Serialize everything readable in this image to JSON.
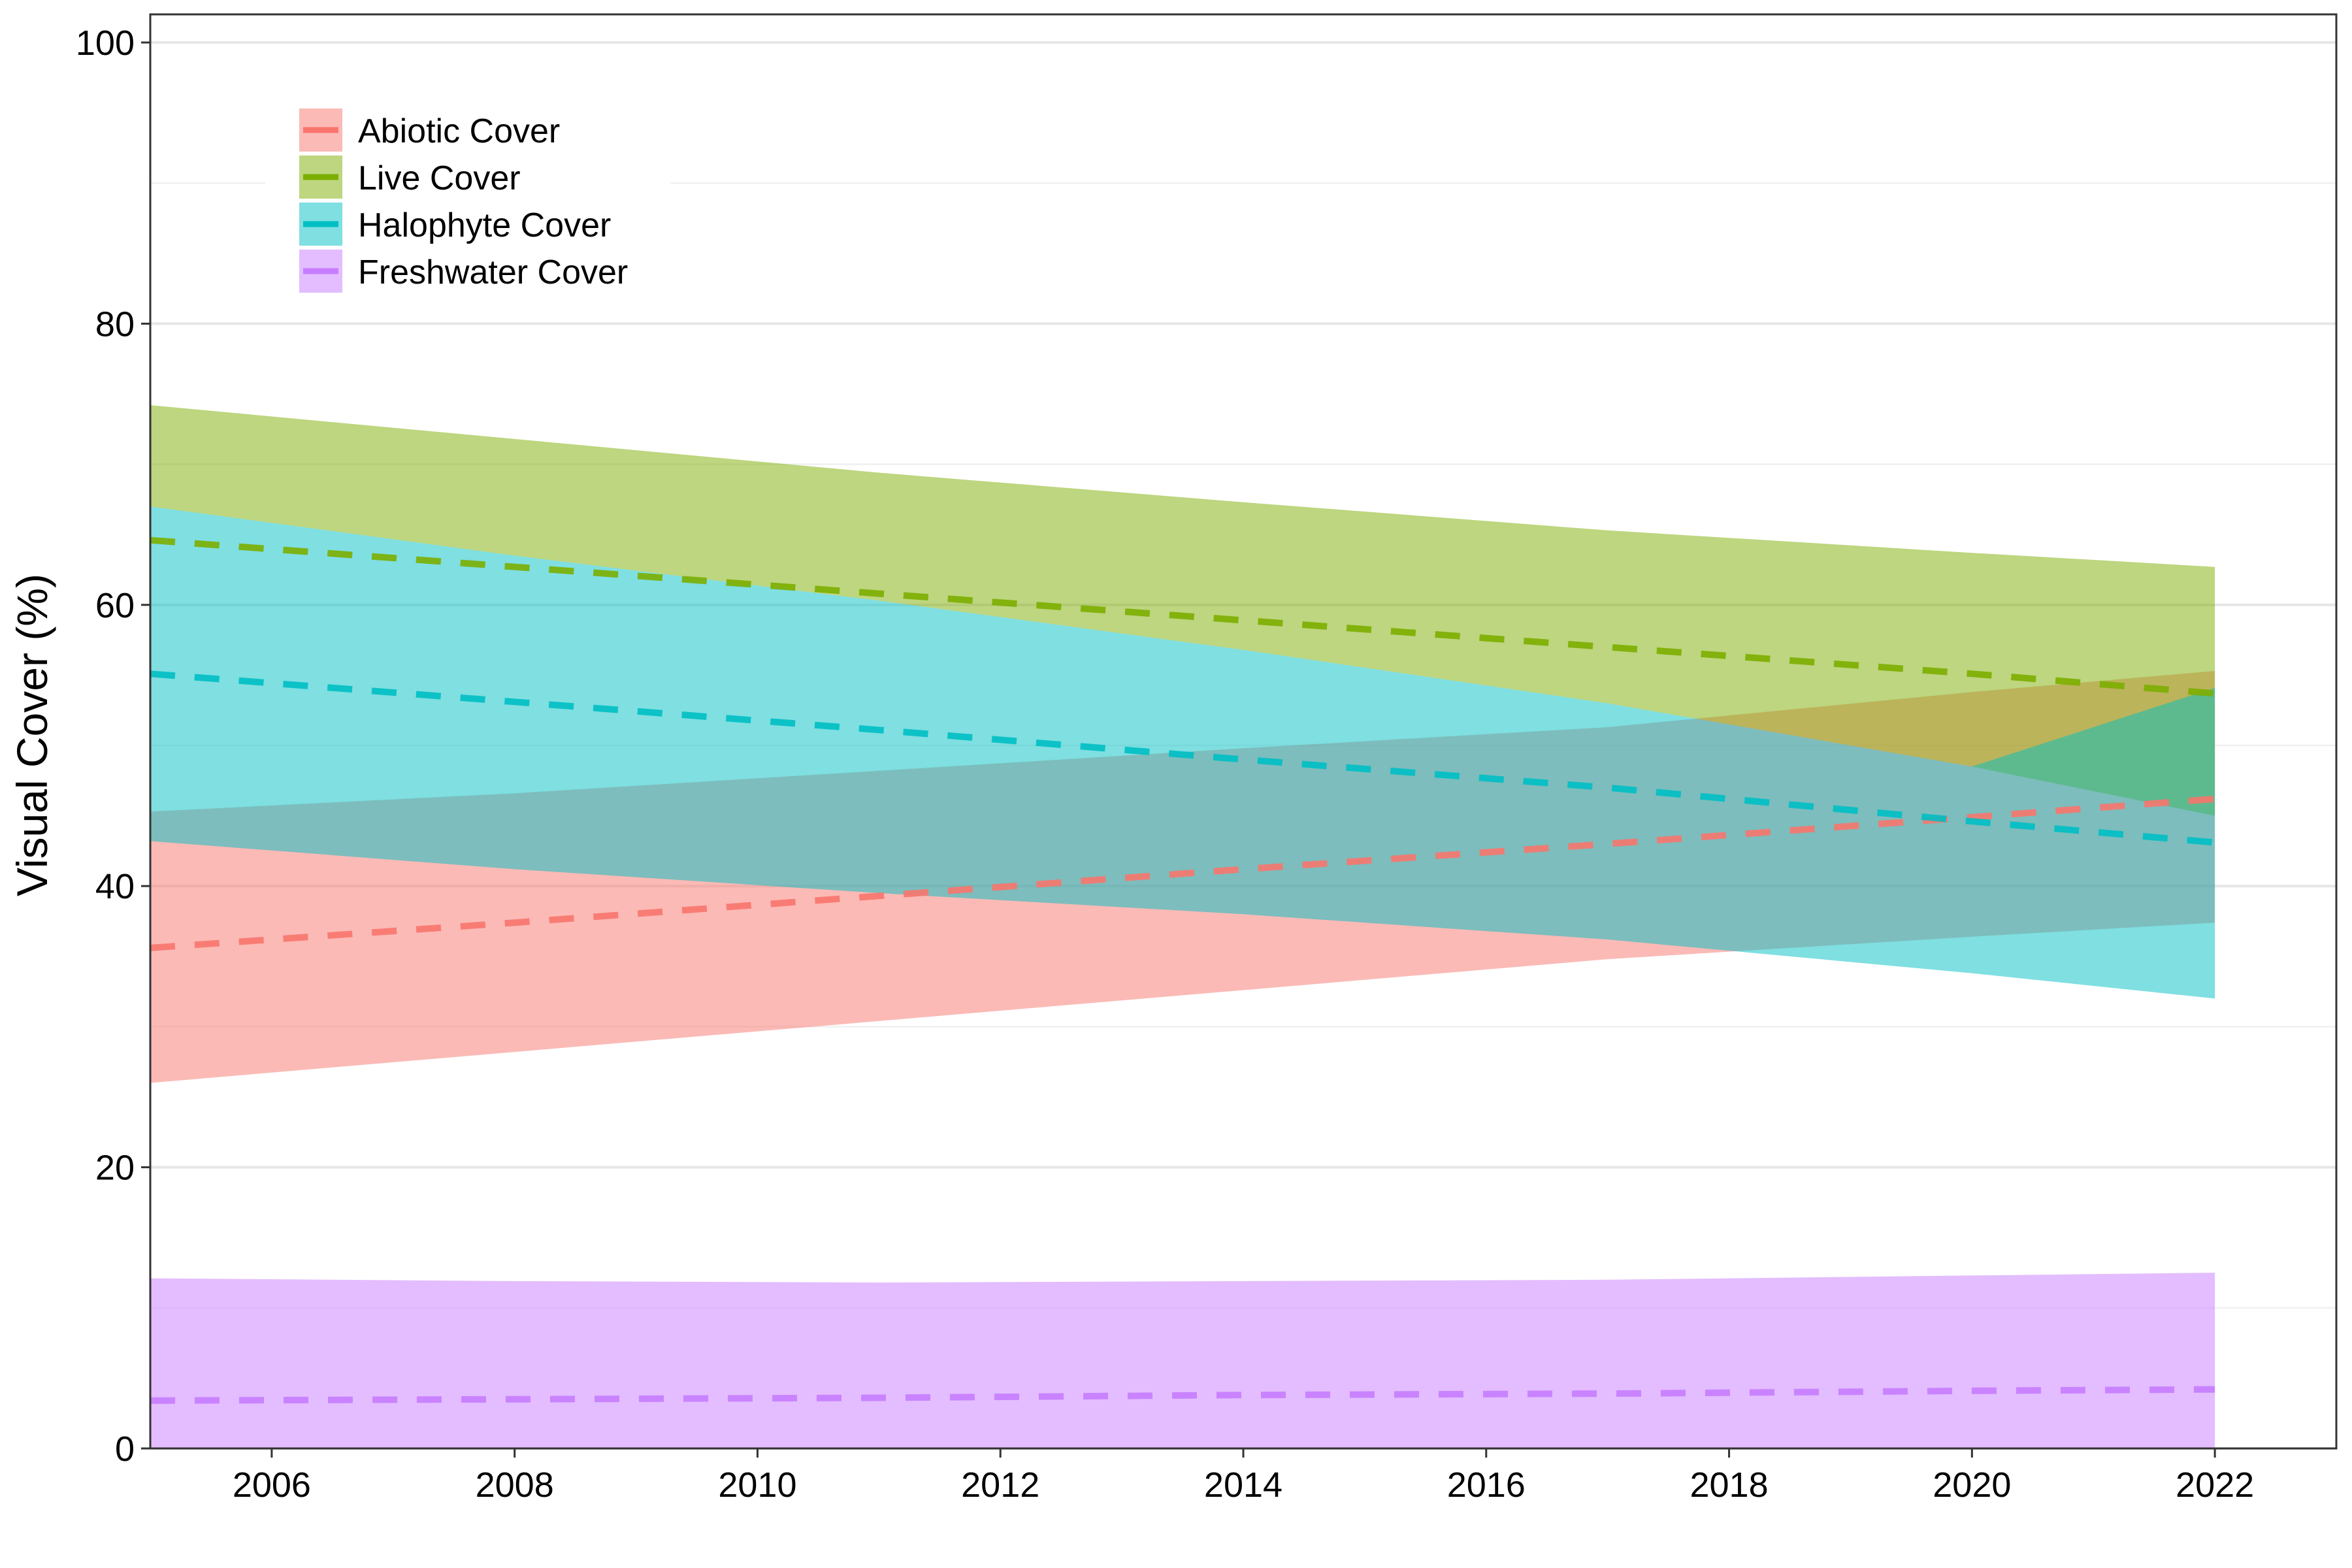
{
  "chart_data": {
    "type": "area",
    "title": "",
    "xlabel": "",
    "ylabel": "Visual Cover (%)",
    "xlim": [
      2005,
      2023
    ],
    "ylim": [
      0,
      102
    ],
    "x_ticks": [
      2006,
      2008,
      2010,
      2012,
      2014,
      2016,
      2018,
      2020,
      2022
    ],
    "y_ticks": [
      0,
      20,
      40,
      60,
      80,
      100
    ],
    "grid": true,
    "legend_position": "top-left",
    "series": [
      {
        "name": "Abiotic Cover",
        "color": "#F8766D",
        "fill": "#F8766D",
        "x": [
          2005,
          2008,
          2011,
          2014,
          2017,
          2020,
          2022
        ],
        "mean": [
          35.6,
          37.4,
          39.3,
          41.2,
          43.0,
          44.9,
          46.2
        ],
        "lower": [
          26.0,
          28.2,
          30.4,
          32.6,
          34.8,
          36.4,
          37.4
        ],
        "upper": [
          45.3,
          46.6,
          48.2,
          49.8,
          51.3,
          53.8,
          55.3
        ]
      },
      {
        "name": "Live Cover",
        "color": "#7CAE00",
        "fill": "#7CAE00",
        "x": [
          2005,
          2008,
          2011,
          2014,
          2017,
          2020,
          2022
        ],
        "mean": [
          64.6,
          62.7,
          60.8,
          58.9,
          57.0,
          55.1,
          53.7
        ],
        "lower": [
          67.0,
          63.5,
          60.3,
          56.8,
          53.0,
          48.5,
          45.0
        ],
        "upper": [
          74.2,
          71.8,
          69.4,
          67.3,
          65.3,
          63.7,
          62.7
        ]
      },
      {
        "name": "Halophyte Cover",
        "color": "#00BFC4",
        "fill": "#00BFC4",
        "x": [
          2005,
          2008,
          2011,
          2014,
          2017,
          2020,
          2022
        ],
        "mean": [
          55.1,
          53.1,
          51.1,
          49.0,
          47.0,
          44.6,
          43.1
        ],
        "lower": [
          43.2,
          41.2,
          39.5,
          38.0,
          36.2,
          33.8,
          32.0
        ],
        "upper": [
          67.0,
          63.5,
          60.3,
          56.8,
          53.0,
          48.5,
          54.1
        ]
      },
      {
        "name": "Freshwater Cover",
        "color": "#C77CFF",
        "fill": "#C77CFF",
        "x": [
          2005,
          2008,
          2011,
          2014,
          2017,
          2020,
          2022
        ],
        "mean": [
          3.4,
          3.5,
          3.6,
          3.8,
          3.9,
          4.1,
          4.2
        ],
        "lower": [
          0,
          0,
          0,
          0,
          0,
          0,
          0
        ],
        "upper": [
          12.1,
          11.9,
          11.8,
          11.9,
          12.0,
          12.3,
          12.5
        ]
      }
    ]
  }
}
